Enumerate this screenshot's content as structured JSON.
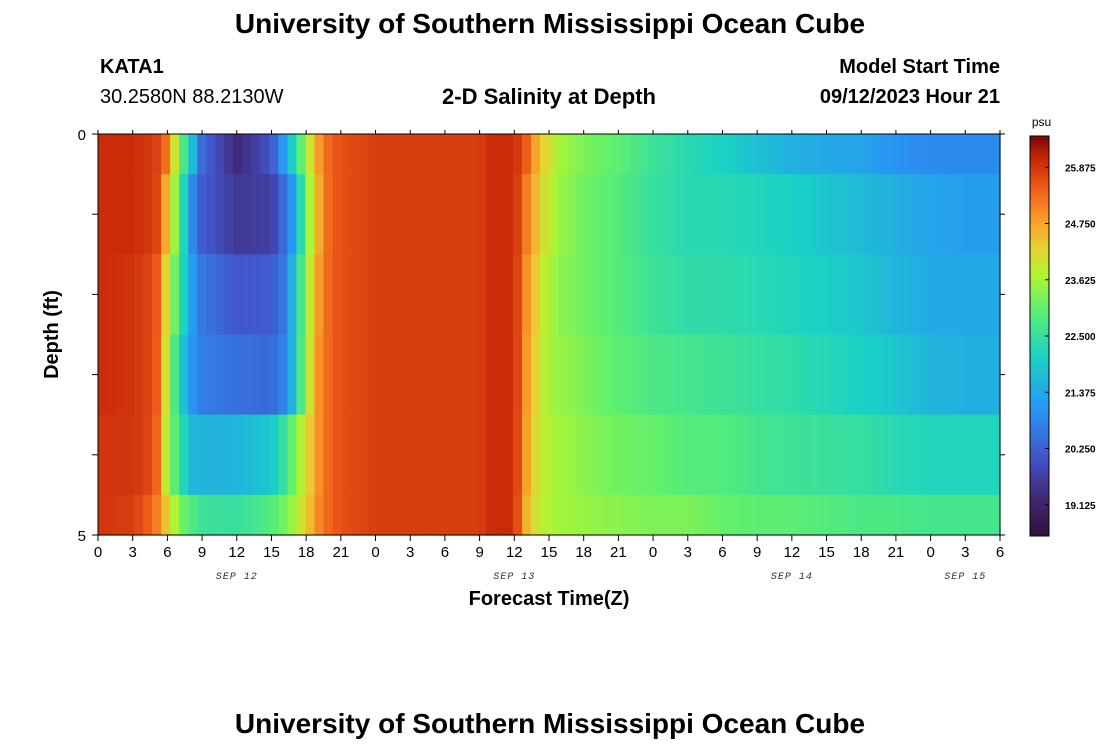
{
  "header": {
    "title": "University of Southern Mississippi Ocean Cube",
    "station": "KATA1",
    "coordinates": "30.2580N  88.2130W",
    "plot_title": "2-D Salinity at Depth",
    "model_start_label": "Model Start Time",
    "model_start_value": "09/12/2023 Hour 21"
  },
  "footer": {
    "title": "University of Southern Mississippi Ocean Cube"
  },
  "chart_data": {
    "type": "heatmap",
    "title": "2-D Salinity at Depth",
    "xlabel": "Forecast Time(Z)",
    "ylabel": "Depth (ft)",
    "x_tick_labels": [
      "0",
      "3",
      "6",
      "9",
      "12",
      "15",
      "18",
      "21",
      "0",
      "3",
      "6",
      "9",
      "12",
      "15",
      "18",
      "21",
      "0",
      "3",
      "6",
      "9",
      "12",
      "15",
      "18",
      "21",
      "0",
      "3",
      "6"
    ],
    "x_range_hours": [
      0,
      78
    ],
    "date_labels": [
      {
        "label": "SEP 12",
        "hour": 12
      },
      {
        "label": "SEP 13",
        "hour": 36
      },
      {
        "label": "SEP 14",
        "hour": 60
      },
      {
        "label": "SEP 15",
        "hour": 75
      }
    ],
    "y_tick_labels": [
      "0",
      "5"
    ],
    "y_range": [
      0,
      5
    ],
    "colorbar": {
      "unit": "psu",
      "min": 18.5,
      "max": 26.5,
      "tick_labels": [
        "25.875",
        "24.750",
        "23.625",
        "22.500",
        "21.375",
        "20.250",
        "19.125"
      ],
      "tick_values": [
        25.875,
        24.75,
        23.625,
        22.5,
        21.375,
        20.25,
        19.125
      ]
    },
    "hours": [
      0,
      3,
      4,
      5,
      6,
      7,
      8,
      9,
      12,
      15,
      16,
      17,
      18,
      19,
      20,
      21,
      24,
      33,
      34,
      36,
      37,
      38,
      39,
      40,
      42,
      45,
      48,
      51,
      54,
      57,
      60,
      66,
      69,
      72,
      75,
      78
    ],
    "depth_levels": [
      "0-0.5 ft",
      "0.5-1.5 ft",
      "1.5-2.5 ft",
      "2.5-3.5 ft",
      "3.5-4.5 ft",
      "4.5-5 ft"
    ],
    "values": [
      [
        26.0,
        26.0,
        25.9,
        25.8,
        25.2,
        23.3,
        22.0,
        20.4,
        19.3,
        20.1,
        21.1,
        22.3,
        23.6,
        24.8,
        25.4,
        25.6,
        25.8,
        25.8,
        26.0,
        26.0,
        25.5,
        24.6,
        24.0,
        23.6,
        23.3,
        23.0,
        22.6,
        22.3,
        22.1,
        21.8,
        21.5,
        21.3,
        21.0,
        20.9,
        20.9,
        20.9
      ],
      [
        26.0,
        26.0,
        25.9,
        25.8,
        24.5,
        23.0,
        21.0,
        20.2,
        19.6,
        19.7,
        20.4,
        21.3,
        23.2,
        24.6,
        25.4,
        25.6,
        25.8,
        25.8,
        26.0,
        26.0,
        25.2,
        24.4,
        23.8,
        23.5,
        23.2,
        22.9,
        22.5,
        22.3,
        22.3,
        22.2,
        22.1,
        21.7,
        21.5,
        21.3,
        21.2,
        21.2
      ],
      [
        26.0,
        25.9,
        25.8,
        25.6,
        24.0,
        22.7,
        21.3,
        20.6,
        20.1,
        20.2,
        20.6,
        21.8,
        23.5,
        24.8,
        25.4,
        25.6,
        25.8,
        25.8,
        26.0,
        26.0,
        25.0,
        24.2,
        23.6,
        23.4,
        23.2,
        22.9,
        22.6,
        22.4,
        22.4,
        22.3,
        22.2,
        21.9,
        21.6,
        21.4,
        21.4,
        21.4
      ],
      [
        26.0,
        25.9,
        25.8,
        25.6,
        23.8,
        22.2,
        21.1,
        20.7,
        20.5,
        20.4,
        20.8,
        21.8,
        23.6,
        24.9,
        25.4,
        25.6,
        25.8,
        25.8,
        26.0,
        26.0,
        24.9,
        24.1,
        23.6,
        23.5,
        23.3,
        23.0,
        22.8,
        22.7,
        22.6,
        22.5,
        22.4,
        22.1,
        21.9,
        21.6,
        21.5,
        21.5
      ],
      [
        25.9,
        25.9,
        25.8,
        25.5,
        23.6,
        22.6,
        21.7,
        21.6,
        21.6,
        21.9,
        22.5,
        23.3,
        24.1,
        24.9,
        25.4,
        25.6,
        25.8,
        25.8,
        26.0,
        26.0,
        24.8,
        24.0,
        23.7,
        23.6,
        23.4,
        23.2,
        23.1,
        22.9,
        22.9,
        22.7,
        22.6,
        22.5,
        22.3,
        22.2,
        22.2,
        22.2
      ],
      [
        25.9,
        25.8,
        25.6,
        25.2,
        24.3,
        23.3,
        22.9,
        22.6,
        22.5,
        22.9,
        23.2,
        23.6,
        24.3,
        25.0,
        25.4,
        25.6,
        25.8,
        25.8,
        26.0,
        26.0,
        24.6,
        23.9,
        23.7,
        23.6,
        23.5,
        23.4,
        23.3,
        23.3,
        23.1,
        23.0,
        23.0,
        22.8,
        22.8,
        22.7,
        22.7,
        22.7
      ]
    ]
  }
}
